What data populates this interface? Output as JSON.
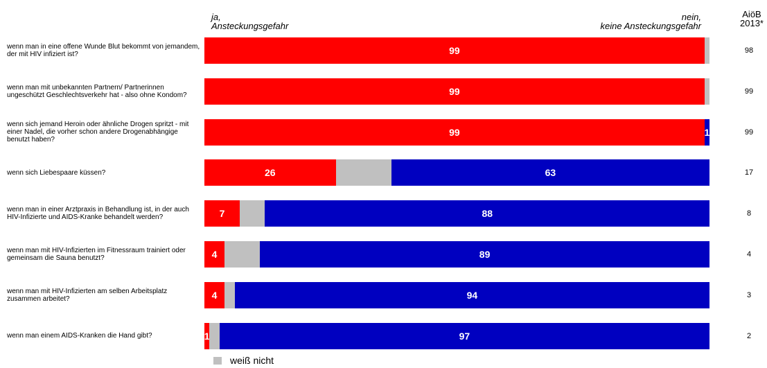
{
  "header": {
    "yes_label": [
      "ja,",
      "Ansteckungsgefahr"
    ],
    "no_label": [
      "nein,",
      "keine Ansteckungsgefahr"
    ],
    "comparison_label": [
      "AiöB",
      "2013*"
    ]
  },
  "colors": {
    "yes": "#ff0000",
    "dont_know": "#c0c0c0",
    "no": "#0000c0"
  },
  "legend": {
    "dont_know_label": "weiß nicht"
  },
  "chart_data": {
    "type": "bar",
    "orientation": "horizontal",
    "stacked": true,
    "xlim": [
      0,
      100
    ],
    "categories": [
      "wenn man in eine offene Wunde Blut bekommt von jemandem, der mit HIV infiziert ist?",
      "wenn man mit unbekannten Partnern/ Partnerinnen ungeschützt Geschlechtsverkehr hat - also ohne Kondom?",
      "wenn sich jemand Heroin oder ähnliche Drogen spritzt - mit einer Nadel, die vorher schon andere Drogenabhängige benutzt haben?",
      "wenn sich Liebespaare küssen?",
      "wenn man in einer Arztpraxis in Behandlung ist, in der auch HIV-Infizierte und AIDS-Kranke behandelt werden?",
      "wenn man mit HIV-Infizierten im Fitnessraum trainiert oder gemeinsam die Sauna benutzt?",
      "wenn man mit HIV-Infizierten am selben Arbeitsplatz zusammen arbeitet?",
      "wenn man einem AIDS-Kranken die Hand gibt?"
    ],
    "series": [
      {
        "key": "yes",
        "values": [
          99,
          99,
          99,
          26,
          7,
          4,
          4,
          1
        ],
        "show_labels": [
          true,
          true,
          true,
          true,
          true,
          true,
          true,
          true
        ]
      },
      {
        "key": "dont_know",
        "name": "weiß nicht",
        "values": [
          1,
          1,
          0,
          11,
          5,
          7,
          2,
          2
        ],
        "show_labels": [
          false,
          false,
          false,
          false,
          false,
          false,
          false,
          false
        ]
      },
      {
        "key": "no",
        "values": [
          0,
          0,
          1,
          63,
          88,
          89,
          94,
          97
        ],
        "show_labels": [
          false,
          false,
          true,
          true,
          true,
          true,
          true,
          true
        ]
      }
    ],
    "comparison": [
      98,
      99,
      99,
      17,
      8,
      4,
      3,
      2
    ]
  }
}
